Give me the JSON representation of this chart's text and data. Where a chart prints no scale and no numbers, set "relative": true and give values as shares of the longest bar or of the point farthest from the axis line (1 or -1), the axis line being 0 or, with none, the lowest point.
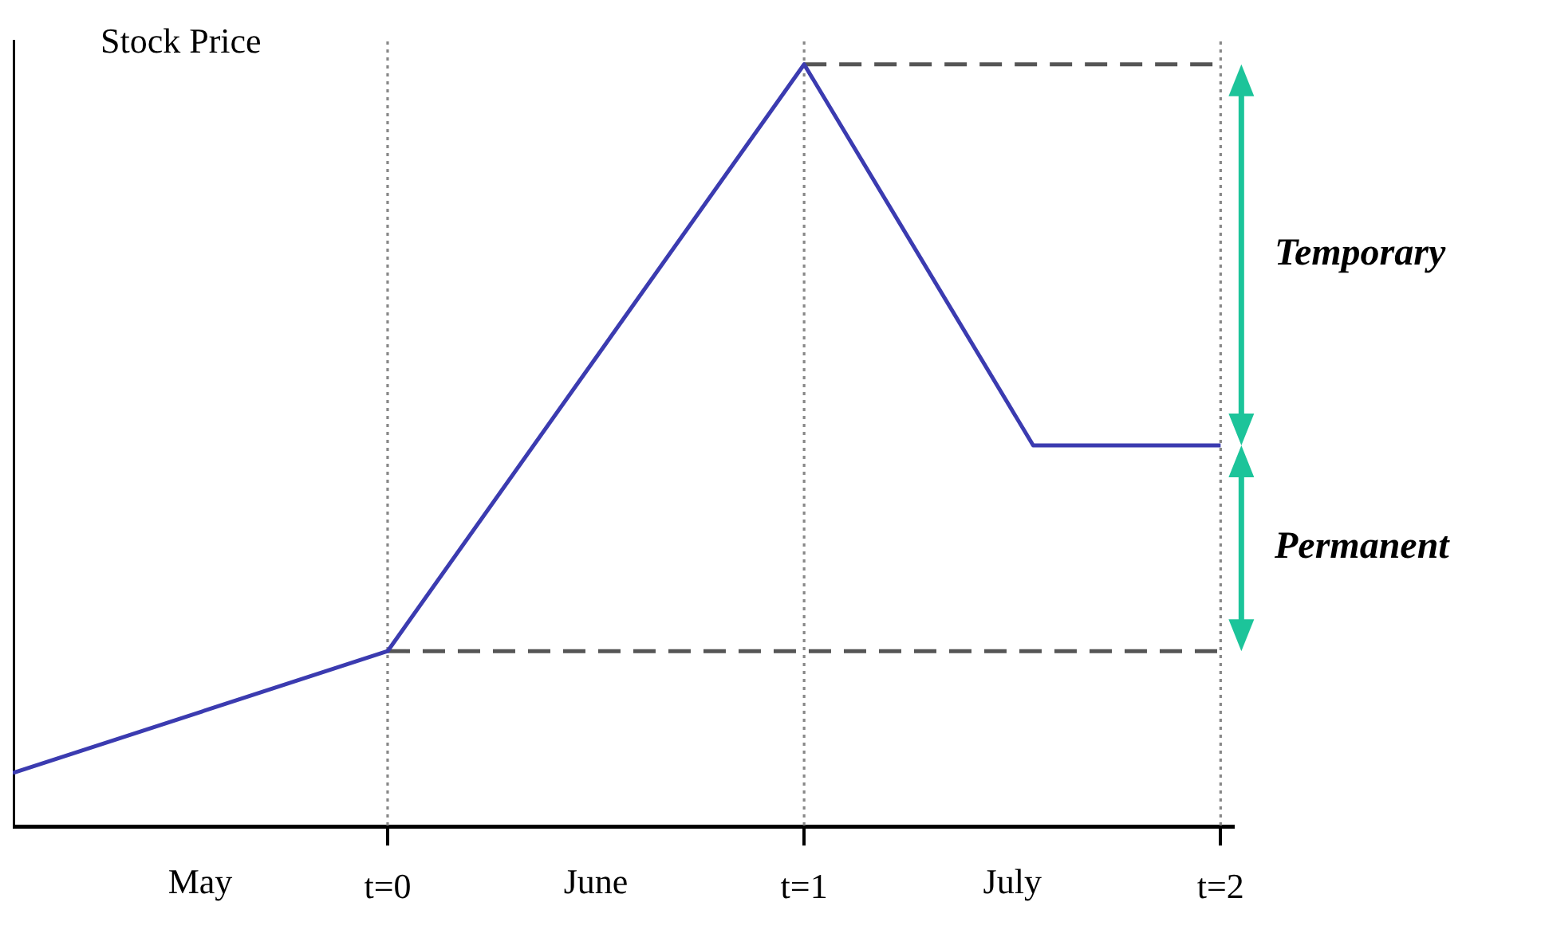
{
  "chart_data": {
    "type": "line",
    "relative": true,
    "ylabel": "Stock Price",
    "xlim": [
      -0.9,
      2.03
    ],
    "xticks": [
      {
        "value": 0,
        "label": "t=0"
      },
      {
        "value": 1,
        "label": "t=1"
      },
      {
        "value": 2,
        "label": "t=2"
      }
    ],
    "series": [
      {
        "color": "#3b3bb0",
        "x": [
          -0.9,
          0,
          1,
          1.55,
          2
        ],
        "values": [
          0.07,
          0.23,
          1,
          0.5,
          0.5
        ]
      },
      {
        "color": "#555555",
        "x": [
          0,
          2
        ],
        "values": [
          0.23,
          0.23
        ],
        "line_style": "dashed"
      },
      {
        "color": "#555555",
        "x": [
          1,
          2
        ],
        "values": [
          1,
          1
        ],
        "line_style": "dashed"
      }
    ],
    "ref_lines": [
      {
        "axis": "x",
        "value": 0,
        "color": "#888888",
        "line_style": "dotted"
      },
      {
        "axis": "x",
        "value": 1,
        "color": "#888888",
        "line_style": "dotted"
      },
      {
        "axis": "x",
        "value": 2,
        "color": "#888888",
        "line_style": "dotted"
      }
    ],
    "annotations": [
      "May",
      "June",
      "July",
      "Temporary",
      "Permanent"
    ],
    "grid": false,
    "legend": false,
    "marker": "none",
    "line_style": "solid"
  }
}
